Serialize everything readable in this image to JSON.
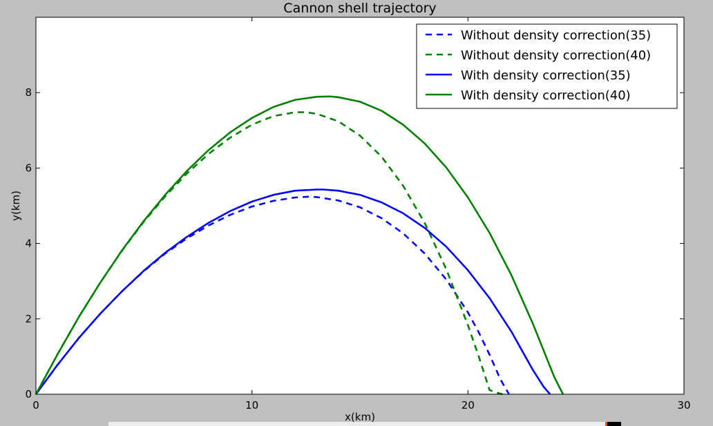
{
  "chart_data": {
    "type": "line",
    "title": "Cannon shell trajectory",
    "xlabel": "x(km)",
    "ylabel": "y(km)",
    "xlim": [
      0,
      30
    ],
    "ylim": [
      0,
      10
    ],
    "xticks": [
      0,
      10,
      20,
      30
    ],
    "yticks": [
      0,
      2,
      4,
      6,
      8
    ],
    "grid": false,
    "legend_position": "top-right",
    "series": [
      {
        "name": "Without density correction(35)",
        "color": "#0000ff",
        "style": "dashed",
        "x": [
          0,
          1,
          2,
          3,
          4,
          5,
          6,
          7,
          8,
          9,
          10,
          11,
          12,
          12.6,
          13,
          14,
          15,
          16,
          17,
          18,
          19,
          20,
          20.5,
          21,
          21.5,
          21.9
        ],
        "y": [
          0,
          0.78,
          1.5,
          2.15,
          2.74,
          3.27,
          3.74,
          4.14,
          4.48,
          4.76,
          4.98,
          5.13,
          5.22,
          5.24,
          5.23,
          5.14,
          4.96,
          4.67,
          4.27,
          3.73,
          3.04,
          2.17,
          1.64,
          1.05,
          0.4,
          0
        ]
      },
      {
        "name": "Without density correction(40)",
        "color": "#008000",
        "style": "dashed",
        "x": [
          0,
          1,
          2,
          3,
          4,
          5,
          6,
          7,
          8,
          9,
          10,
          11,
          12,
          12.5,
          13,
          14,
          15,
          16,
          17,
          18,
          19,
          20,
          20.5,
          21,
          21.3,
          21.6
        ],
        "y": [
          0,
          1.06,
          2.06,
          2.98,
          3.82,
          4.58,
          5.26,
          5.86,
          6.38,
          6.81,
          7.15,
          7.38,
          7.48,
          7.48,
          7.44,
          7.24,
          6.86,
          6.3,
          5.53,
          4.54,
          3.31,
          1.83,
          1.0,
          0.11,
          0.05,
          0
        ]
      },
      {
        "name": "With density correction(35)",
        "color": "#0000ff",
        "style": "solid",
        "x": [
          0,
          1,
          2,
          3,
          4,
          5,
          6,
          7,
          8,
          9,
          10,
          11,
          12,
          13,
          13.3,
          14,
          15,
          16,
          17,
          18,
          19,
          20,
          21,
          22,
          23,
          23.5,
          23.8
        ],
        "y": [
          0,
          0.78,
          1.5,
          2.15,
          2.74,
          3.28,
          3.76,
          4.18,
          4.55,
          4.86,
          5.11,
          5.29,
          5.4,
          5.43,
          5.43,
          5.4,
          5.29,
          5.09,
          4.8,
          4.41,
          3.91,
          3.29,
          2.55,
          1.67,
          0.65,
          0.2,
          0
        ]
      },
      {
        "name": "With density correction(40)",
        "color": "#008000",
        "style": "solid",
        "x": [
          0,
          1,
          2,
          3,
          4,
          5,
          6,
          7,
          8,
          9,
          10,
          11,
          12,
          13,
          13.6,
          14,
          15,
          16,
          17,
          18,
          19,
          20,
          21,
          22,
          23,
          24,
          24.4
        ],
        "y": [
          0,
          1.06,
          2.06,
          2.98,
          3.83,
          4.6,
          5.3,
          5.93,
          6.48,
          6.95,
          7.33,
          7.62,
          7.81,
          7.89,
          7.9,
          7.88,
          7.76,
          7.52,
          7.15,
          6.65,
          6.01,
          5.22,
          4.28,
          3.17,
          1.88,
          0.45,
          0
        ]
      }
    ]
  }
}
